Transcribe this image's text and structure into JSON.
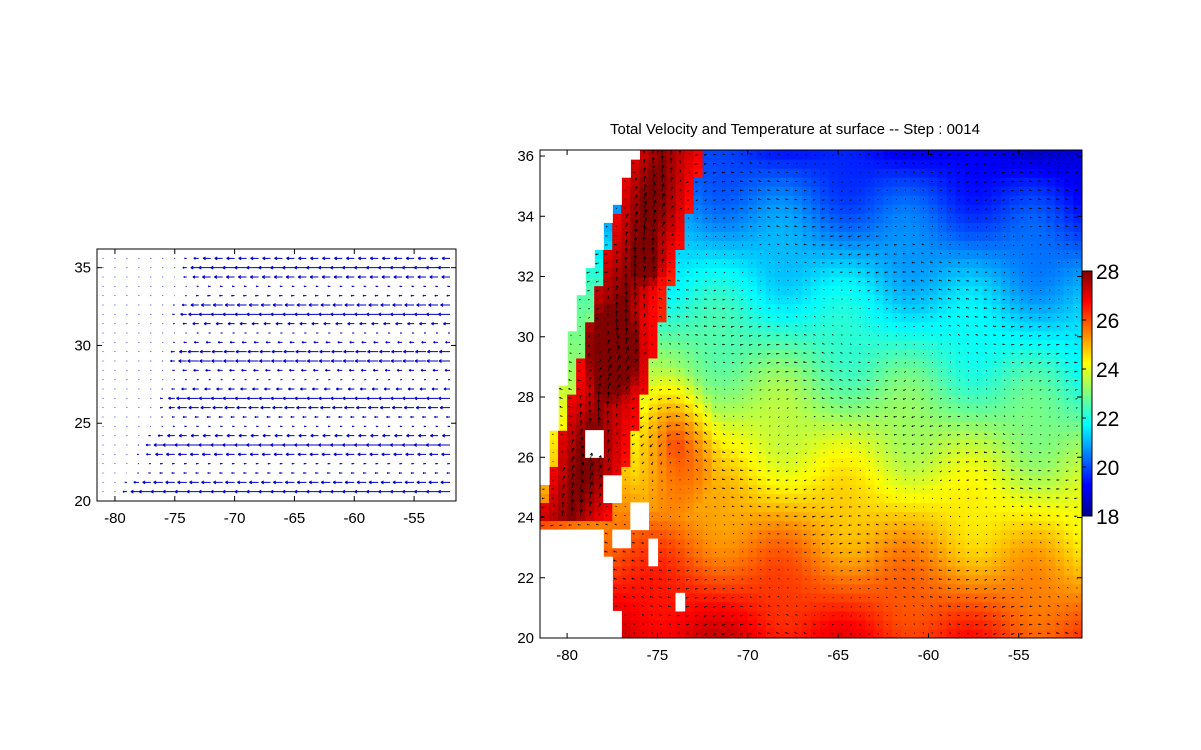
{
  "chart_data": [
    {
      "type": "quiver",
      "title": "",
      "xlabel": "",
      "ylabel": "",
      "xlim": [
        -81.5,
        -51.5
      ],
      "ylim": [
        20,
        36.2
      ],
      "xticks": [
        "-80",
        "-75",
        "-70",
        "-65",
        "-60",
        "-55"
      ],
      "xtick_values": [
        -80,
        -75,
        -70,
        -65,
        -60,
        -55
      ],
      "yticks": [
        "20",
        "25",
        "30",
        "35"
      ],
      "ytick_values": [
        20,
        25,
        30,
        35
      ],
      "arrow_color": "#0000cc",
      "field_description_values": {
        "grid_step_deg": 0.6,
        "dominant_direction": "westward (negative u)",
        "max_u_deg": 1.5
      }
    },
    {
      "type": "heatmap",
      "title": "Total Velocity and Temperature at surface -- Step : 0014",
      "xlabel": "",
      "ylabel": "",
      "xlim": [
        -81.5,
        -51.5
      ],
      "ylim": [
        20,
        36.2
      ],
      "xticks": [
        "-80",
        "-75",
        "-70",
        "-65",
        "-60",
        "-55"
      ],
      "xtick_values": [
        -80,
        -75,
        -70,
        -65,
        -60,
        -55
      ],
      "yticks": [
        "20",
        "22",
        "24",
        "26",
        "28",
        "30",
        "32",
        "34",
        "36"
      ],
      "ytick_values": [
        20,
        22,
        24,
        26,
        28,
        30,
        32,
        34,
        36
      ],
      "colormap": "jet",
      "overlay": "velocity arrows (black)",
      "colorbar": {
        "min": 18,
        "max": 28,
        "ticks": [
          "18",
          "20",
          "22",
          "24",
          "26",
          "28"
        ],
        "tick_values": [
          18,
          20,
          22,
          24,
          26,
          28
        ]
      },
      "temperature_field_summary": {
        "north_east_value": 22.0,
        "central_value": 24.0,
        "south_value": 26.5,
        "gulf_stream_value": 28.0
      }
    }
  ]
}
